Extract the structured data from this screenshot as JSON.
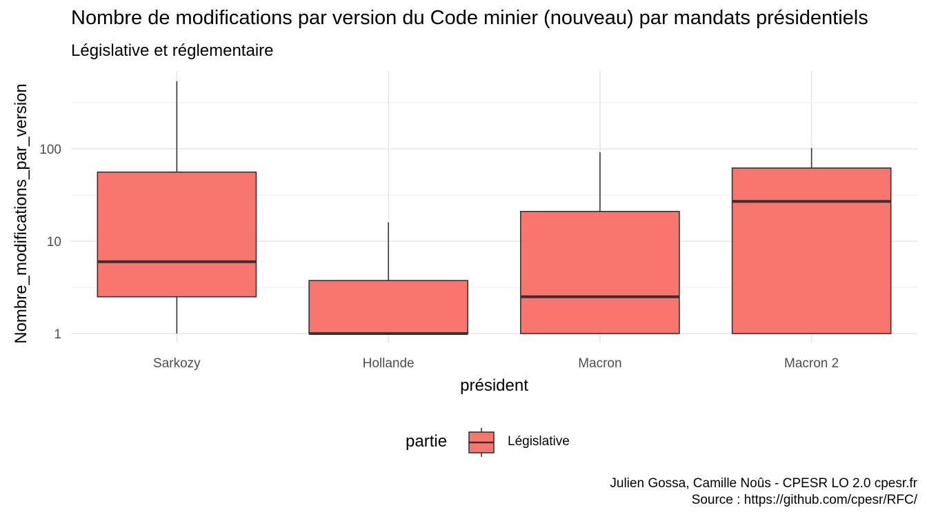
{
  "chart_data": {
    "type": "boxplot",
    "title": "Nombre de modifications par version du Code minier (nouveau) par mandats présidentiels",
    "subtitle": "Législative et réglementaire",
    "xlabel": "président",
    "ylabel": "Nombre_modifications_par_version",
    "y_scale": "log10",
    "y_ticks": [
      1,
      10,
      100
    ],
    "y_tick_labels": [
      "1",
      "10",
      "100"
    ],
    "ylim": [
      0.8,
      700
    ],
    "categories": [
      "Sarkozy",
      "Hollande",
      "Macron",
      "Macron 2"
    ],
    "series": [
      {
        "name": "Législative",
        "color": "#F8766D",
        "boxes": [
          {
            "min": 1,
            "q1": 2.5,
            "median": 6,
            "q3": 56,
            "max": 540
          },
          {
            "min": 1,
            "q1": 1,
            "median": 1,
            "q3": 3.75,
            "max": 16
          },
          {
            "min": 1,
            "q1": 1,
            "median": 2.5,
            "q3": 21,
            "max": 92
          },
          {
            "min": 1,
            "q1": 1,
            "median": 27,
            "q3": 62,
            "max": 102
          }
        ]
      }
    ],
    "legend": {
      "title": "partie",
      "position": "bottom"
    },
    "grid": true,
    "caption": [
      "Julien Gossa, Camille Noûs - CPESR LO 2.0 cpesr.fr",
      "Source : https://github.com/cpesr/RFC/"
    ]
  }
}
